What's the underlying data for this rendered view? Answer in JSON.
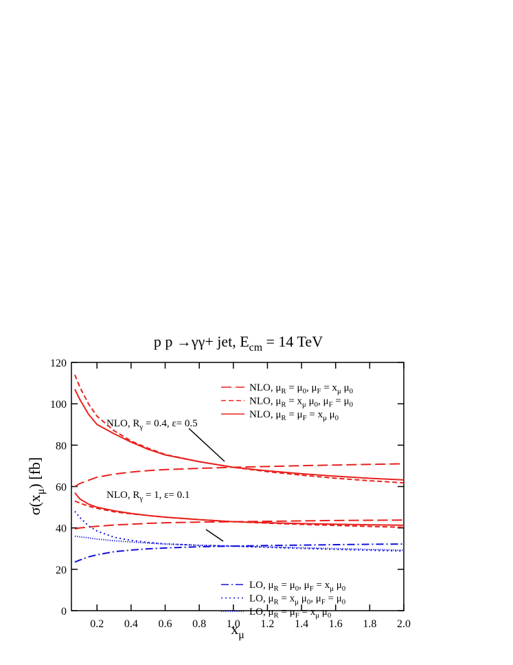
{
  "chart_data": {
    "type": "line",
    "title": [
      "p p →γγ+ jet, E",
      "cm",
      " = 14 TeV"
    ],
    "x_label": [
      "x",
      "μ"
    ],
    "y_label": [
      "σ(x",
      "μ",
      ") [fb]"
    ],
    "annotations": [
      [
        "NLO, R",
        "γ",
        " = 0.4, ε= 0.5"
      ],
      [
        "NLO, R",
        "γ",
        " = 1, ε= 0.1"
      ]
    ],
    "xlim": [
      0.05,
      2.0
    ],
    "ylim": [
      0,
      120
    ],
    "xticks": [
      0.2,
      0.4,
      0.6,
      0.8,
      {
        "value": 1,
        "label": "1.0"
      },
      1.2,
      1.4,
      1.6,
      1.8,
      {
        "value": 2,
        "label": "2.0"
      }
    ],
    "yticks": [
      0,
      20,
      40,
      60,
      80,
      100,
      120
    ],
    "x": [
      0.07,
      0.1,
      0.15,
      0.2,
      0.3,
      0.4,
      0.5,
      0.6,
      0.8,
      1.0,
      1.2,
      1.4,
      1.6,
      1.8,
      2.0
    ],
    "series": [
      {
        "name": [
          "NLO, μ",
          "R",
          " = μ",
          "0",
          ", μ",
          "F",
          " = x",
          "μ",
          " μ",
          "0"
        ],
        "legend": "upper right",
        "color": "#e8201c",
        "dash": "long-dash",
        "values": [
          60,
          61.5,
          63,
          64.5,
          66,
          67,
          67.7,
          68.2,
          68.8,
          69.3,
          69.7,
          70.1,
          70.4,
          70.7,
          71
        ]
      },
      {
        "name": [
          "NLO, μ",
          "R",
          " = x",
          "μ",
          " μ",
          "0",
          ", μ",
          "F",
          " = μ",
          "0"
        ],
        "legend": "upper right",
        "color": "#e8201c",
        "dash": "dash",
        "values": [
          114,
          108,
          100,
          94,
          87,
          82,
          78.5,
          75.5,
          72,
          69.3,
          67.2,
          65.5,
          64,
          62.8,
          61.8
        ]
      },
      {
        "name": [
          "NLO, μ",
          "R",
          " = μ",
          "F",
          " = x",
          "μ",
          " μ",
          "0"
        ],
        "legend": "upper right",
        "color": "#e8201c",
        "dash": "solid",
        "values": [
          107,
          102,
          95,
          90,
          85.5,
          81.5,
          78,
          75.3,
          72,
          69.3,
          67.6,
          66.2,
          65,
          64,
          63.2
        ]
      },
      {
        "color": "#e8201c",
        "dash": "long-dash",
        "values": [
          39.5,
          40,
          40.4,
          40.8,
          41.4,
          41.8,
          42.2,
          42.5,
          42.8,
          43,
          43.2,
          43.4,
          43.6,
          43.7,
          43.8
        ]
      },
      {
        "color": "#e8201c",
        "dash": "dash",
        "values": [
          53,
          52,
          50.5,
          49.5,
          47.8,
          46.8,
          46,
          45.2,
          44,
          43,
          42.3,
          41.7,
          41.2,
          40.7,
          40.3
        ]
      },
      {
        "color": "#e8201c",
        "dash": "solid",
        "values": [
          57,
          54,
          51.5,
          50,
          48.3,
          47,
          46,
          45.2,
          44,
          43,
          42.5,
          42.1,
          41.8,
          41.5,
          41.3
        ]
      },
      {
        "name": [
          "LO, μ",
          "R",
          " = μ",
          "0",
          ", μ",
          "F",
          " = x",
          "μ",
          " μ",
          "0"
        ],
        "legend": "lower right",
        "color": "#1010dd",
        "dash": "dash-dot",
        "values": [
          23.5,
          24.5,
          26,
          27,
          28.5,
          29.3,
          29.9,
          30.3,
          30.9,
          31.2,
          31.5,
          31.7,
          31.9,
          32.1,
          32.2
        ]
      },
      {
        "name": [
          "LO, μ",
          "R",
          " = x",
          "μ",
          " μ",
          "0",
          ", μ",
          "F",
          " = μ",
          "0"
        ],
        "legend": "lower right",
        "color": "#1010dd",
        "dash": "dot",
        "values": [
          48,
          45,
          41,
          38.5,
          35.5,
          34,
          33,
          32.3,
          31.6,
          31.2,
          30.6,
          30.1,
          29.6,
          29.2,
          28.8
        ]
      },
      {
        "name": [
          "LO, μ",
          "R",
          " = μ",
          "F",
          " = x",
          "μ",
          " μ",
          "0"
        ],
        "legend": "lower right",
        "color": "#1010dd",
        "dash": "fine-dot",
        "values": [
          36,
          35.7,
          35.2,
          34.6,
          33.8,
          33.2,
          32.7,
          32.2,
          31.6,
          31.2,
          30.8,
          30.4,
          30,
          29.6,
          29.2
        ]
      }
    ]
  }
}
